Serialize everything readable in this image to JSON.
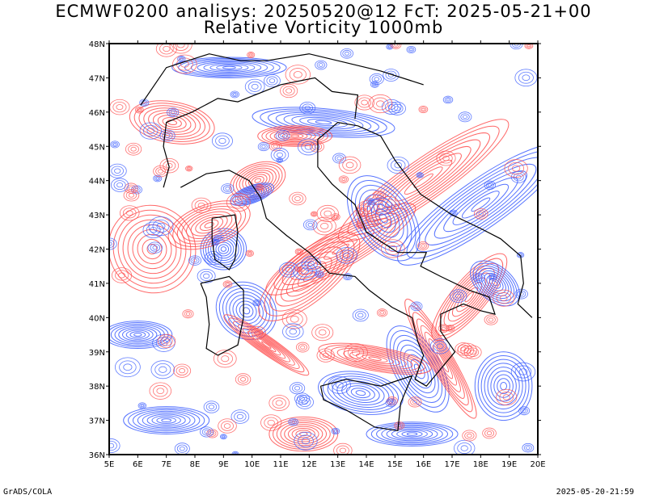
{
  "header": {
    "title_line1": "ECMWF0200 analisys: 20250520@12 FcT: 2025-05-21+00",
    "title_line2": "Relative Vorticity 1000mb"
  },
  "map": {
    "lon_ticks": [
      "5E",
      "6E",
      "7E",
      "8E",
      "9E",
      "10E",
      "11E",
      "12E",
      "13E",
      "14E",
      "15E",
      "16E",
      "17E",
      "18E",
      "19E",
      "20E"
    ],
    "lat_ticks": [
      "48N",
      "47N",
      "46N",
      "45N",
      "44N",
      "43N",
      "42N",
      "41N",
      "40N",
      "39N",
      "38N",
      "37N",
      "36N"
    ],
    "lon_range": [
      5,
      20
    ],
    "lat_range": [
      36,
      48
    ],
    "positive_color": "#ff4d4d",
    "negative_color": "#3a5cff",
    "coastline_color": "#000000"
  },
  "footer": {
    "left": "GrADS/COLA",
    "right": "2025-05-20-21:59"
  }
}
